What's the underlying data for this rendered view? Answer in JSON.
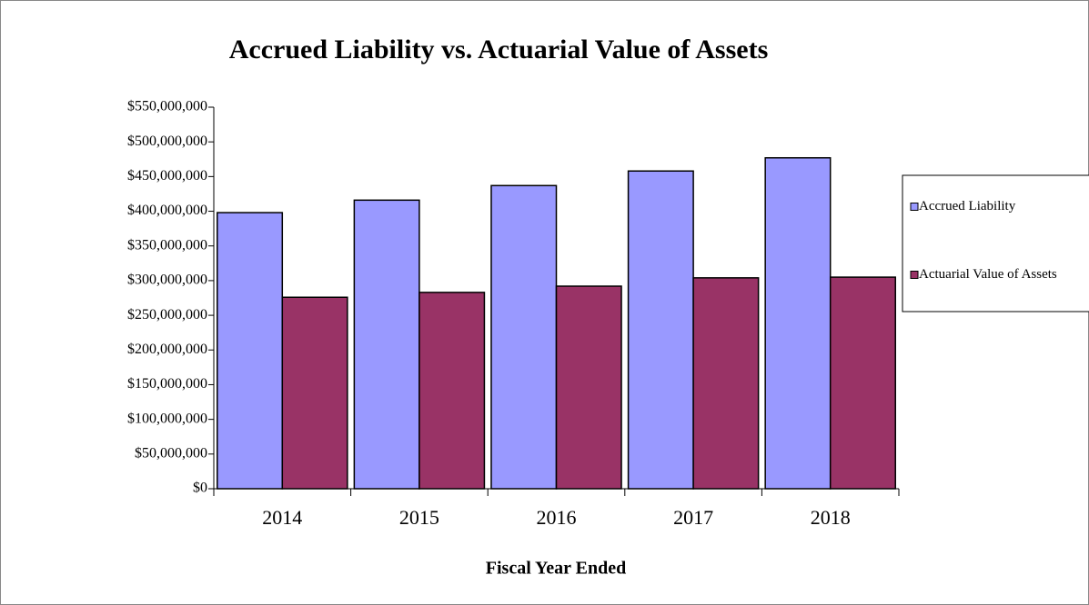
{
  "chart_data": {
    "type": "bar",
    "title": "Accrued Liability vs. Actuarial Value of Assets",
    "x_label": "Fiscal Year Ended",
    "categories": [
      "2014",
      "2015",
      "2016",
      "2017",
      "2018"
    ],
    "series": [
      {
        "name": "Accrued Liability",
        "color": "#9999ff",
        "values": [
          398000000,
          416000000,
          437000000,
          458000000,
          477000000
        ]
      },
      {
        "name": "Actuarial Value of Assets",
        "color": "#993366",
        "values": [
          276000000,
          283000000,
          292000000,
          304000000,
          305000000
        ]
      }
    ],
    "ylim": [
      0,
      550000000
    ],
    "yticks": [
      {
        "value": 0,
        "label": "$0"
      },
      {
        "value": 50000000,
        "label": "$50,000,000"
      },
      {
        "value": 100000000,
        "label": "$100,000,000"
      },
      {
        "value": 150000000,
        "label": "$150,000,000"
      },
      {
        "value": 200000000,
        "label": "$200,000,000"
      },
      {
        "value": 250000000,
        "label": "$250,000,000"
      },
      {
        "value": 300000000,
        "label": "$300,000,000"
      },
      {
        "value": 350000000,
        "label": "$350,000,000"
      },
      {
        "value": 400000000,
        "label": "$400,000,000"
      },
      {
        "value": 450000000,
        "label": "$450,000,000"
      },
      {
        "value": 500000000,
        "label": "$500,000,000"
      },
      {
        "value": 550000000,
        "label": "$550,000,000"
      }
    ],
    "grid": false,
    "legend": "right"
  }
}
